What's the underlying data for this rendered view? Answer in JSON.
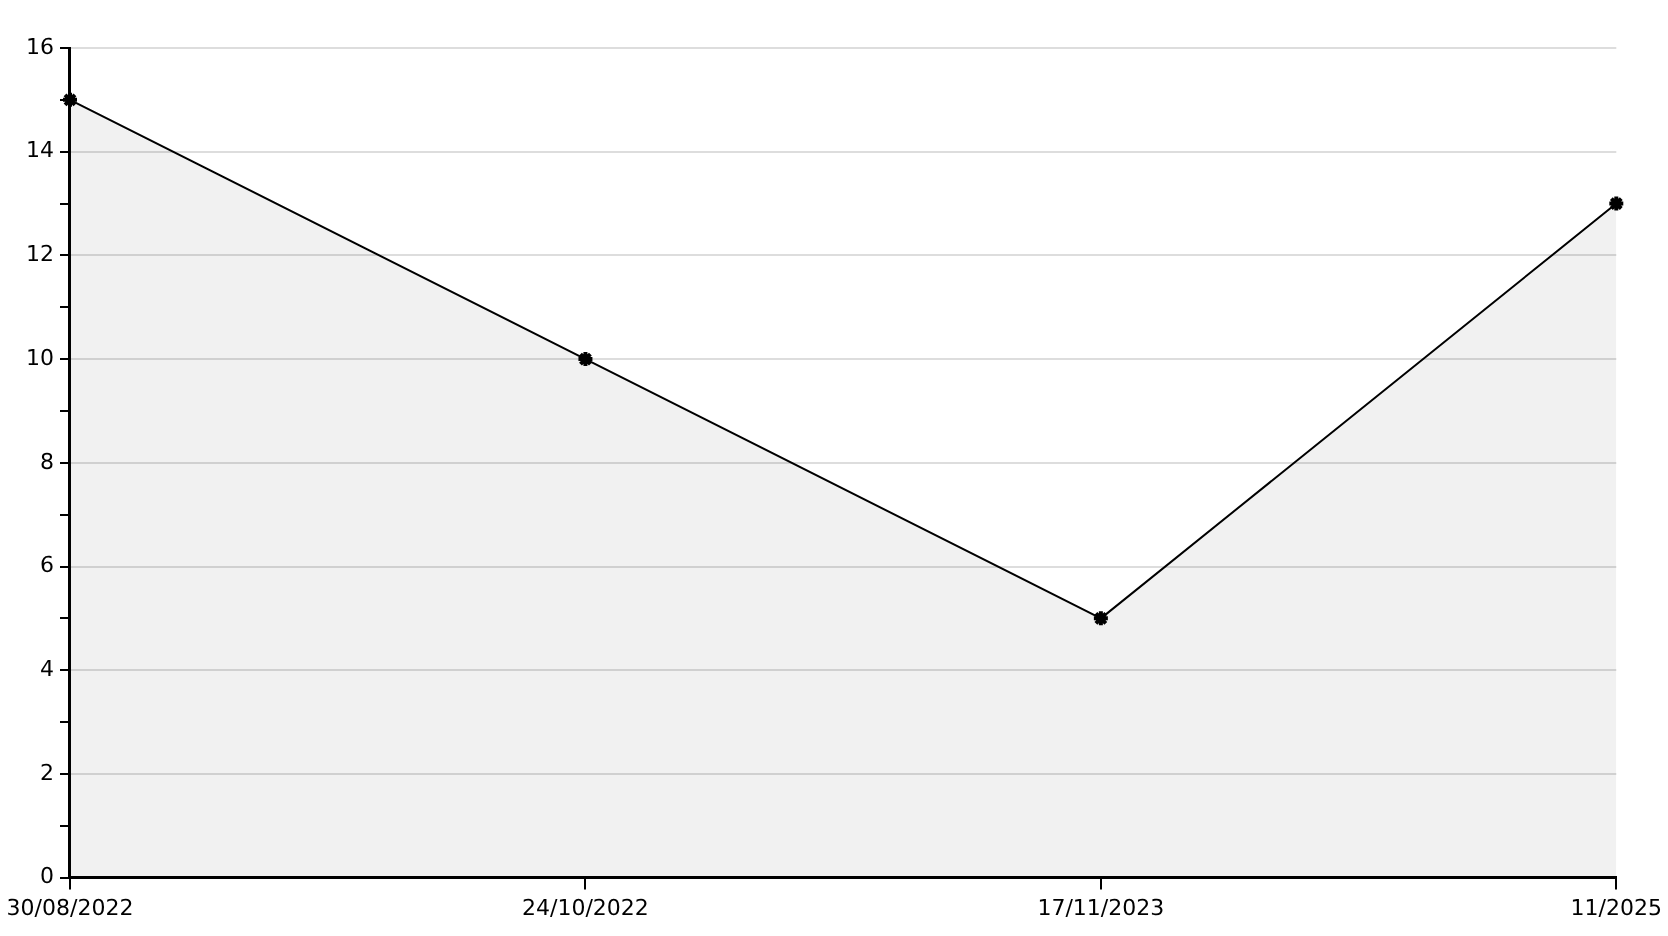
{
  "chart_data": {
    "type": "area",
    "categories": [
      "30/08/2022",
      "24/10/2022",
      "17/11/2023",
      "11/2025"
    ],
    "series": [
      {
        "color": "#000000",
        "values": [
          15,
          10,
          5,
          13
        ]
      }
    ],
    "ylim": [
      0,
      16
    ],
    "yticks": [
      0,
      {
        "value": 1,
        "label": null
      },
      2,
      {
        "value": 3,
        "label": null
      },
      4,
      {
        "value": 5,
        "label": null
      },
      6,
      {
        "value": 7,
        "label": null
      },
      8,
      {
        "value": 9,
        "label": null
      },
      10,
      {
        "value": 11,
        "label": null
      },
      12,
      {
        "value": 13,
        "label": null
      },
      14,
      {
        "value": 15,
        "label": null
      },
      16
    ],
    "grid": "y",
    "legend": false,
    "marker": "cross",
    "line_style": "solid"
  }
}
